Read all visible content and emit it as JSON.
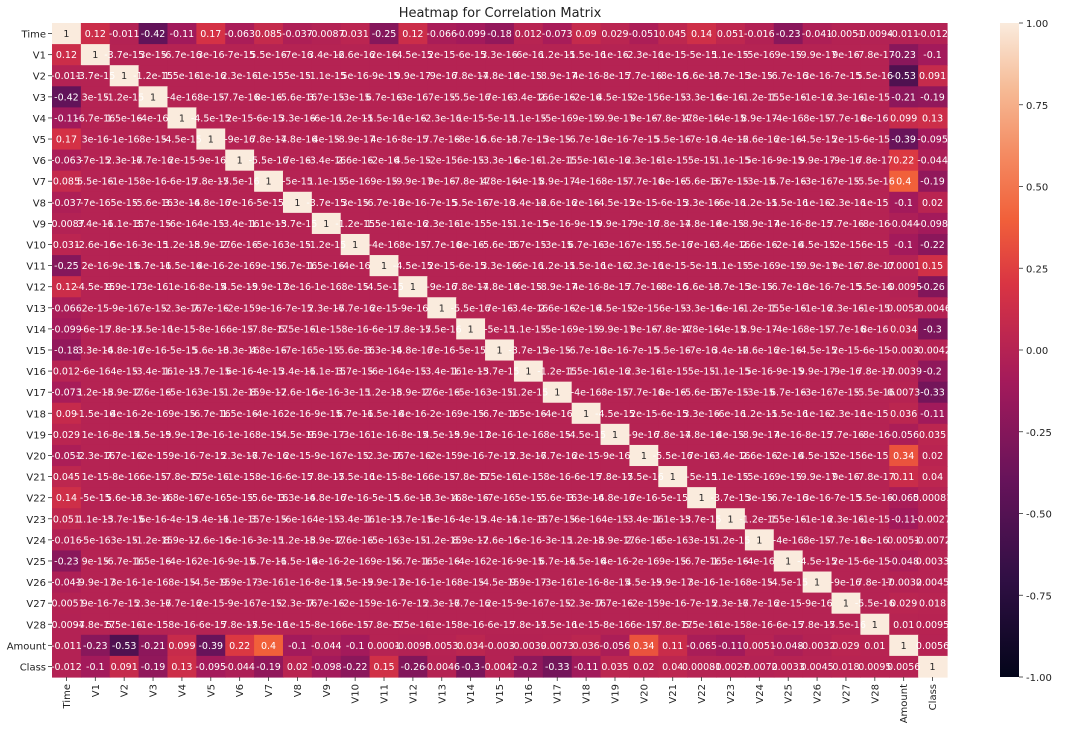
{
  "chart_data": {
    "type": "heatmap",
    "title": "Heatmap for Correlation Matrix",
    "labels": [
      "Time",
      "V1",
      "V2",
      "V3",
      "V4",
      "V5",
      "V6",
      "V7",
      "V8",
      "V9",
      "V10",
      "V11",
      "V12",
      "V13",
      "V14",
      "V15",
      "V16",
      "V17",
      "V18",
      "V19",
      "V20",
      "V21",
      "V22",
      "V23",
      "V24",
      "V25",
      "V26",
      "V27",
      "V28",
      "Amount",
      "Class"
    ],
    "colorbar": {
      "min": -1.0,
      "max": 1.0,
      "ticks": [
        "1.00",
        "0.75",
        "0.50",
        "0.25",
        "0.00",
        "-0.25",
        "-0.50",
        "-0.75",
        "-1.00"
      ]
    },
    "time_row": [
      "1",
      "0.12",
      "-0.011",
      "-0.42",
      "-0.11",
      "0.17",
      "-0.063",
      "0.085",
      "-0.037",
      "-0.0087",
      "0.031",
      "-0.25",
      "0.12",
      "-0.066",
      "-0.099",
      "-0.18",
      "0.012",
      "-0.073",
      "0.09",
      "0.029",
      "-0.051",
      "0.045",
      "0.14",
      "0.051",
      "-0.016",
      "-0.23",
      "-0.041",
      "-0.0051",
      "-0.0094",
      "-0.011",
      "-0.012"
    ],
    "amount_row": [
      "-0.011",
      "-0.23",
      "-0.53",
      "-0.21",
      "0.099",
      "-0.39",
      "0.22",
      "0.4",
      "-0.1",
      "-0.044",
      "-0.1",
      "0.0001",
      "-0.0095",
      "0.0053",
      "0.034",
      "-0.003",
      "-0.0039",
      "0.0073",
      "0.036",
      "-0.056",
      "0.34",
      "0.11",
      "-0.065",
      "-0.11",
      "0.0051",
      "-0.048",
      "-0.0032",
      "0.029",
      "0.01",
      "1",
      "0.0056"
    ],
    "class_row": [
      "-0.012",
      "-0.1",
      "0.091",
      "-0.19",
      "0.13",
      "-0.095",
      "-0.044",
      "-0.19",
      "0.02",
      "-0.098",
      "-0.22",
      "0.15",
      "-0.26",
      "-0.0046",
      "-0.3",
      "-0.0042",
      "-0.2",
      "-0.33",
      "-0.11",
      "0.035",
      "0.02",
      "0.04",
      "0.00081",
      "-0.0027",
      "-0.0072",
      "0.0033",
      "0.0045",
      "0.018",
      "0.0095",
      "0.0056",
      "1"
    ],
    "near_zero_labels": [
      "1e-15",
      "2e-15",
      "3e-16",
      "4e-16",
      "5e-16",
      "6e-16",
      "7e-16",
      "8e-16",
      "9e-16",
      "1e-16",
      "2e-16",
      "3e-15",
      "4e-15",
      "5e-15",
      "6e-15",
      "7e-15",
      "8e-15",
      "9e-15",
      "1.2e-15",
      "3.4e-16",
      "5.6e-16",
      "7.8e-17",
      "2.3e-16",
      "4.5e-15",
      "6.7e-16",
      "8.9e-17",
      "1.1e-15",
      "3.3e-16",
      "5.5e-16",
      "7.7e-16",
      "9.9e-17",
      "1.5e-16",
      "2.6e-16",
      "3.7e-15",
      "4.8e-16"
    ]
  }
}
